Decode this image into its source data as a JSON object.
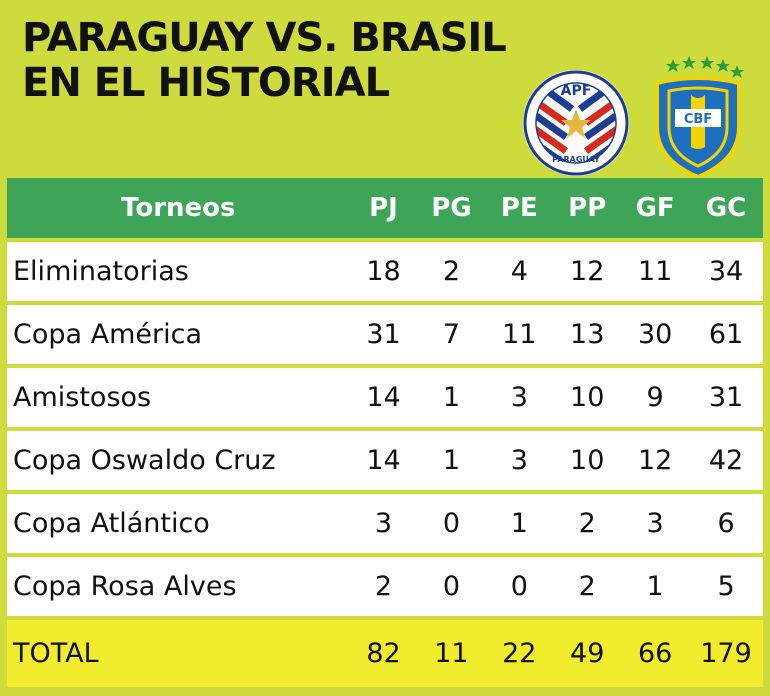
{
  "title": {
    "line1": "PARAGUAY VS. BRASIL",
    "line2": "EN EL HISTORIAL"
  },
  "logos": {
    "apf": {
      "top_text": "APF",
      "bottom_text": "PARAGUAY",
      "colors": [
        "#d52b1e",
        "#ffffff",
        "#1b3e94",
        "#e8b43a"
      ]
    },
    "cbf": {
      "text": "CBF",
      "colors": [
        "#1e6fc0",
        "#f2d500",
        "#2a9d3c",
        "#ffffff"
      ]
    }
  },
  "table": {
    "headers": [
      "Torneos",
      "PJ",
      "PG",
      "PE",
      "PP",
      "GF",
      "GC"
    ],
    "rows": [
      [
        "Eliminatorias",
        "18",
        "2",
        "4",
        "12",
        "11",
        "34"
      ],
      [
        "Copa América",
        "31",
        "7",
        "11",
        "13",
        "30",
        "61"
      ],
      [
        "Amistosos",
        "14",
        "1",
        "3",
        "10",
        "9",
        "31"
      ],
      [
        "Copa Oswaldo Cruz",
        "14",
        "1",
        "3",
        "10",
        "12",
        "42"
      ],
      [
        "Copa Atlántico",
        "3",
        "0",
        "1",
        "2",
        "3",
        "6"
      ],
      [
        "Copa Rosa Alves",
        "2",
        "0",
        "0",
        "2",
        "1",
        "5"
      ]
    ],
    "total": [
      "TOTAL",
      "82",
      "11",
      "22",
      "49",
      "66",
      "179"
    ]
  },
  "colors": {
    "background": "#cddc3c",
    "header": "#3ea457",
    "total": "#f2ec2e"
  }
}
